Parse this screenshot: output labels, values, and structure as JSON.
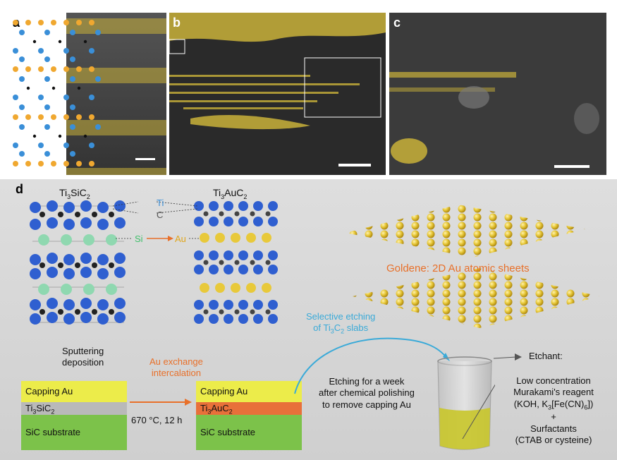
{
  "panels": {
    "a": "a",
    "b": "b",
    "c": "c",
    "d": "d"
  },
  "structures": {
    "left_title_main": "Ti",
    "left_title_sub1": "3",
    "left_title_mid": "SiC",
    "left_title_sub2": "2",
    "right_title_main": "Ti",
    "right_title_sub1": "3",
    "right_title_mid": "AuC",
    "right_title_sub2": "2",
    "ti": "Ti",
    "c": "C",
    "si": "Si",
    "au": "Au"
  },
  "goldene_label": "Goldene: 2D Au atomic sheets",
  "selective_etch": {
    "line1": "Selective etching",
    "line2_pre": "of Ti",
    "line2_sub1": "3",
    "line2_mid": "C",
    "line2_sub2": "2",
    "line2_post": " slabs"
  },
  "sputtering": {
    "line1": "Sputtering",
    "line2": "deposition"
  },
  "exchange": {
    "line1": "Au exchange",
    "line2": "intercalation"
  },
  "conditions": "670 °C, 12 h",
  "etching_text": {
    "line1": "Etching for a week",
    "line2": "after chemical polishing",
    "line3": "to remove capping Au"
  },
  "etchant": {
    "label": "Etchant:",
    "line1": "Low concentration",
    "line2": "Murakami's reagent",
    "line3_pre": "(KOH, K",
    "line3_sub1": "3",
    "line3_mid": "[Fe(CN)",
    "line3_sub2": "6",
    "line3_post": "])",
    "plus": "+",
    "line4": "Surfactants",
    "line5": "(CTAB or cysteine)"
  },
  "left_block": {
    "cap": "Capping Au",
    "mid_pre": "Ti",
    "mid_sub1": "3",
    "mid_mid": "SiC",
    "mid_sub2": "2",
    "sub": "SiC substrate"
  },
  "right_block": {
    "cap": "Capping Au",
    "mid_pre": "Ti",
    "mid_sub1": "3",
    "mid_mid": "AuC",
    "mid_sub2": "2",
    "sub": "SiC substrate"
  },
  "colors": {
    "gold": "#e8c93a",
    "ti_blue": "#2f5fd0",
    "si_green": "#8fd8b0",
    "orange": "#e8702a",
    "substrate": "#7cc24a"
  }
}
